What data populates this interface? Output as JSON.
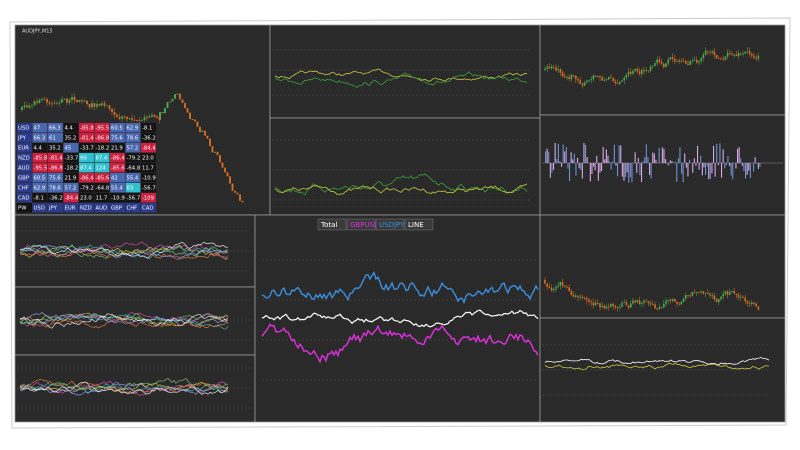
{
  "symbol_title": "AUDJPY,M15",
  "legend": [
    "Total",
    "GBPUSD",
    "USDJPY",
    "LINE"
  ],
  "matrix": {
    "rows": [
      [
        "USD",
        "47",
        "66.3",
        "4.4",
        "-85.8",
        "-95.5",
        "60.5",
        "62.9",
        "-8.1"
      ],
      [
        "JPY",
        "66.3",
        "61",
        "35.2",
        "-81.4",
        "-86.8",
        "75.6",
        "78.6",
        "-36.2"
      ],
      [
        "EUR",
        "4.4",
        "35.2",
        "45",
        "-33.7",
        "-18.2",
        "21.9",
        "57.2",
        "-84.4"
      ],
      [
        "NZD",
        "-85.8",
        "-81.4",
        "-33.7",
        "90",
        "87.4",
        "-86.4",
        "-79.2",
        "23.0"
      ],
      [
        "AUD",
        "-95.5",
        "-86.8",
        "-18.2",
        "87.4",
        "124",
        "-85.6",
        "-64.8",
        "11.7"
      ],
      [
        "GBP",
        "60.5",
        "75.6",
        "21.9",
        "-86.4",
        "-85.6",
        "42",
        "55.4",
        "-10.9"
      ],
      [
        "CHF",
        "62.9",
        "78.6",
        "57.2",
        "-79.2",
        "-64.8",
        "55.4",
        "83",
        "-56.7"
      ],
      [
        "CAD",
        "-8.1",
        "-36.2",
        "-84.4",
        "23.0",
        "11.7",
        "-10.9",
        "-56.7",
        "-109"
      ]
    ],
    "footer": [
      "PW",
      "USD",
      "JPY",
      "EUR",
      "NZD",
      "AUD",
      "GBP",
      "CHF",
      "CAD"
    ]
  }
}
